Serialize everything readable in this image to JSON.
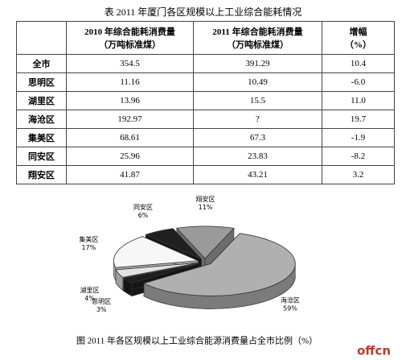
{
  "table_title": "表 2011 年厦门各区规模以上工业综合能耗情况",
  "table": {
    "header": [
      [
        ""
      ],
      [
        "2010 年综合能耗消费量",
        "（万吨标准煤）"
      ],
      [
        "2011 年综合能耗消费量",
        "（万吨标准煤）"
      ],
      [
        "增幅",
        "（%）"
      ]
    ],
    "rows": [
      [
        "全市",
        "354.5",
        "391.29",
        "10.4"
      ],
      [
        "思明区",
        "11.16",
        "10.49",
        "-6.0"
      ],
      [
        "湖里区",
        "13.96",
        "15.5",
        "11.0"
      ],
      [
        "海沧区",
        "192.97",
        "?",
        "19.7"
      ],
      [
        "集美区",
        "68.61",
        "67.3",
        "-1.9"
      ],
      [
        "同安区",
        "25.96",
        "23.83",
        "-8.2"
      ],
      [
        "翔安区",
        "41.87",
        "43.21",
        "3.2"
      ]
    ]
  },
  "figure": {
    "type": "pie",
    "caption": "图 2011 年各区规模以上工业综合能源消费量占全市比例（%）",
    "slices": [
      {
        "name": "海沧区",
        "value": 59,
        "value_label": "59%",
        "color": "#b0b0b0"
      },
      {
        "name": "思明区",
        "value": 3,
        "value_label": "3%",
        "color": "#1e1e1e"
      },
      {
        "name": "湖里区",
        "value": 4,
        "value_label": "4%",
        "color": "#e2e2e2"
      },
      {
        "name": "集美区",
        "value": 17,
        "value_label": "17%",
        "color": "#f7f7f7"
      },
      {
        "name": "同安区",
        "value": 6,
        "value_label": "6%",
        "color": "#202020"
      },
      {
        "name": "翔安区",
        "value": 11,
        "value_label": "11%",
        "color": "#9a9a9a"
      }
    ]
  },
  "watermark": "offcn"
}
